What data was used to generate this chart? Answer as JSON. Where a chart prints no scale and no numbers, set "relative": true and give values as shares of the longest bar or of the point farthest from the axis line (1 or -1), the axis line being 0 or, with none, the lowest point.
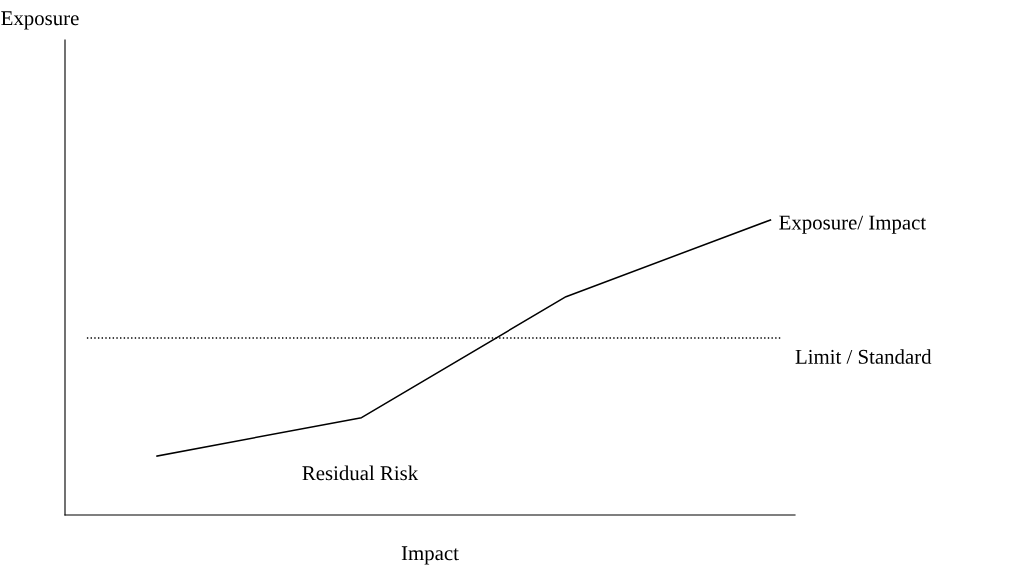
{
  "chart_data": {
    "type": "line",
    "relative": true,
    "xlabel": "Impact",
    "categories": [
      null,
      null,
      null,
      null
    ],
    "series": [
      {
        "name": "Exposure/ Impact",
        "color": "#000000",
        "values": [
          0.2,
          0.33,
          0.74,
          1.0
        ]
      }
    ],
    "ref_lines": [
      {
        "axis": "y",
        "value": 0.6,
        "label": "Limit / Standard",
        "color": "#000000",
        "line_style": "dotted"
      }
    ],
    "annotations": [
      "Exposure",
      "Residual Risk"
    ],
    "legend": false,
    "marker": "none",
    "line_style": "solid"
  }
}
